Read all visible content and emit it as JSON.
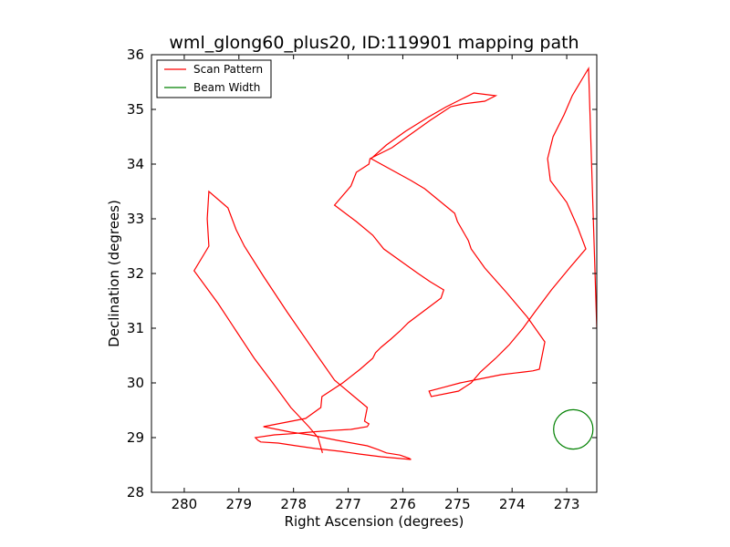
{
  "chart_data": {
    "type": "line",
    "title": "wml_glong60_plus20, ID:119901 mapping path",
    "xlabel": "Right Ascension (degrees)",
    "ylabel": "Declination (degrees)",
    "xlim": [
      280.6,
      272.45
    ],
    "ylim": [
      28,
      36
    ],
    "x_ticks": [
      280,
      279,
      278,
      277,
      276,
      275,
      274,
      273
    ],
    "y_ticks": [
      28,
      29,
      30,
      31,
      32,
      33,
      34,
      35,
      36
    ],
    "grid": false,
    "legend": "top-left",
    "series": [
      {
        "name": "Scan Pattern",
        "color": "#ff0000",
        "x": [
          277.47,
          277.55,
          277.72,
          278.05,
          278.38,
          278.72,
          279.05,
          279.38,
          279.82,
          279.55,
          279.58,
          279.55,
          279.2,
          279.05,
          278.9,
          278.55,
          278.12,
          277.6,
          277.25,
          276.65,
          276.7,
          276.62,
          276.65,
          276.95,
          277.3,
          277.7,
          278.05,
          278.35,
          278.7,
          278.65,
          278.6,
          278.28,
          277.95,
          277.6,
          277.15,
          276.8,
          276.4,
          275.85,
          275.88,
          276.05,
          276.3,
          276.45,
          276.65,
          277.2,
          277.45,
          277.7,
          278.05,
          278.55,
          277.78,
          277.5,
          277.48,
          277.1,
          276.78,
          276.55,
          276.5,
          276.4,
          276.22,
          276.05,
          275.9,
          275.3,
          275.25,
          275.5,
          275.72,
          276.0,
          276.35,
          276.55,
          276.85,
          277.25,
          276.95,
          276.85,
          276.62,
          276.6,
          276.2,
          275.85,
          275.5,
          275.12,
          274.9,
          274.5,
          274.3,
          274.7,
          274.9,
          275.2,
          275.55,
          275.95,
          276.3,
          276.58,
          275.85,
          275.6,
          275.05,
          275.0,
          274.8,
          274.75,
          274.5,
          274.1,
          273.72,
          273.4,
          273.48,
          273.5,
          273.62,
          273.78,
          273.95,
          274.2,
          274.45,
          274.7,
          274.95,
          275.25,
          275.52,
          275.48,
          274.98,
          274.75,
          274.58,
          274.3,
          274.05,
          273.8,
          273.58,
          273.28,
          272.95,
          272.65,
          272.8,
          273.0,
          273.3,
          273.35,
          273.25,
          273.05,
          272.9,
          272.72,
          272.6,
          272.45
        ],
        "y": [
          28.72,
          29.0,
          29.2,
          29.55,
          30.0,
          30.45,
          30.95,
          31.45,
          32.05,
          32.5,
          33.0,
          33.5,
          33.2,
          32.8,
          32.5,
          31.95,
          31.3,
          30.55,
          30.05,
          29.55,
          29.3,
          29.25,
          29.2,
          29.15,
          29.13,
          29.1,
          29.07,
          29.05,
          29.0,
          28.95,
          28.92,
          28.9,
          28.85,
          28.8,
          28.75,
          28.7,
          28.65,
          28.6,
          28.62,
          28.68,
          28.72,
          28.78,
          28.85,
          28.95,
          29.0,
          29.05,
          29.1,
          29.2,
          29.35,
          29.55,
          29.75,
          30.0,
          30.25,
          30.45,
          30.55,
          30.65,
          30.8,
          30.95,
          31.1,
          31.55,
          31.7,
          31.85,
          32.0,
          32.2,
          32.45,
          32.7,
          32.95,
          33.25,
          33.6,
          33.85,
          34.0,
          34.1,
          34.3,
          34.55,
          34.8,
          35.05,
          35.1,
          35.15,
          35.25,
          35.3,
          35.2,
          35.05,
          34.85,
          34.6,
          34.35,
          34.1,
          33.7,
          33.55,
          33.1,
          32.95,
          32.6,
          32.45,
          32.1,
          31.65,
          31.2,
          30.75,
          30.35,
          30.25,
          30.22,
          30.2,
          30.18,
          30.15,
          30.1,
          30.05,
          30.0,
          29.92,
          29.85,
          29.75,
          29.85,
          30.0,
          30.2,
          30.45,
          30.7,
          31.0,
          31.3,
          31.7,
          32.1,
          32.45,
          32.85,
          33.3,
          33.7,
          34.1,
          34.5,
          34.9,
          35.25,
          35.55,
          35.75,
          31.0
        ]
      },
      {
        "name": "Beam Width",
        "color": "#008000",
        "center_x": 272.88,
        "center_y": 29.15,
        "radius_deg": 0.36
      }
    ]
  }
}
